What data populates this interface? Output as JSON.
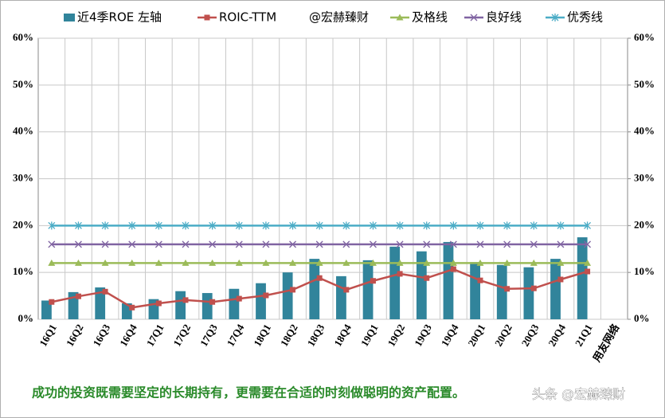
{
  "chart_data": {
    "type": "combo",
    "categories": [
      "16Q1",
      "16Q2",
      "16Q3",
      "16Q4",
      "17Q1",
      "17Q2",
      "17Q3",
      "17Q4",
      "18Q1",
      "18Q2",
      "18Q3",
      "18Q4",
      "19Q1",
      "19Q2",
      "19Q3",
      "19Q4",
      "20Q1",
      "20Q2",
      "20Q3",
      "20Q4",
      "21Q1",
      "用友网络"
    ],
    "series": [
      {
        "name": "近4季ROE 左轴",
        "type": "bar",
        "color": "#31849b",
        "values": [
          4.0,
          5.8,
          6.8,
          3.4,
          4.3,
          6.0,
          5.6,
          6.5,
          7.7,
          10.0,
          12.9,
          9.2,
          12.6,
          15.5,
          14.5,
          16.5,
          12.2,
          11.6,
          11.1,
          12.9,
          17.5,
          null
        ]
      },
      {
        "name": "ROIC-TTM",
        "type": "line",
        "marker": "square",
        "color": "#c0504d",
        "values": [
          3.7,
          4.9,
          5.9,
          2.5,
          3.4,
          4.1,
          3.7,
          4.4,
          5.1,
          6.3,
          8.8,
          6.3,
          8.2,
          9.7,
          8.8,
          10.7,
          8.3,
          6.5,
          6.6,
          8.5,
          10.2,
          null
        ]
      },
      {
        "name": "及格线",
        "type": "line",
        "marker": "triangle",
        "color": "#9bbb59",
        "values": [
          12,
          12,
          12,
          12,
          12,
          12,
          12,
          12,
          12,
          12,
          12,
          12,
          12,
          12,
          12,
          12,
          12,
          12,
          12,
          12,
          12,
          null
        ]
      },
      {
        "name": "良好线",
        "type": "line",
        "marker": "x",
        "color": "#8064a2",
        "values": [
          16,
          16,
          16,
          16,
          16,
          16,
          16,
          16,
          16,
          16,
          16,
          16,
          16,
          16,
          16,
          16,
          16,
          16,
          16,
          16,
          16,
          null
        ]
      },
      {
        "name": "优秀线",
        "type": "line",
        "marker": "star",
        "color": "#4bacc6",
        "values": [
          20,
          20,
          20,
          20,
          20,
          20,
          20,
          20,
          20,
          20,
          20,
          20,
          20,
          20,
          20,
          20,
          20,
          20,
          20,
          20,
          20,
          null
        ]
      }
    ],
    "legend_note": "@宏赫臻财",
    "ylim": [
      0,
      60
    ],
    "yticks": [
      {
        "value": 0,
        "label": "0%"
      },
      {
        "value": 10,
        "label": "10%"
      },
      {
        "value": 20,
        "label": "20%"
      },
      {
        "value": 30,
        "label": "30%"
      },
      {
        "value": 40,
        "label": "40%"
      },
      {
        "value": 50,
        "label": "50%"
      },
      {
        "value": 60,
        "label": "60%"
      }
    ],
    "y2lim": [
      0,
      60
    ],
    "y2ticks": [
      {
        "value": 0,
        "label": "0%"
      },
      {
        "value": 10,
        "label": "10%"
      },
      {
        "value": 20,
        "label": "20%"
      },
      {
        "value": 30,
        "label": "30%"
      },
      {
        "value": 40,
        "label": "40%"
      },
      {
        "value": 50,
        "label": "50%"
      },
      {
        "value": 60,
        "label": "60%"
      }
    ],
    "grid": true,
    "footer": "成功的投资既需要坚定的长期持有，更需要在合适的时刻做聪明的资产配置。",
    "watermark": "头条 @宏赫臻财"
  }
}
